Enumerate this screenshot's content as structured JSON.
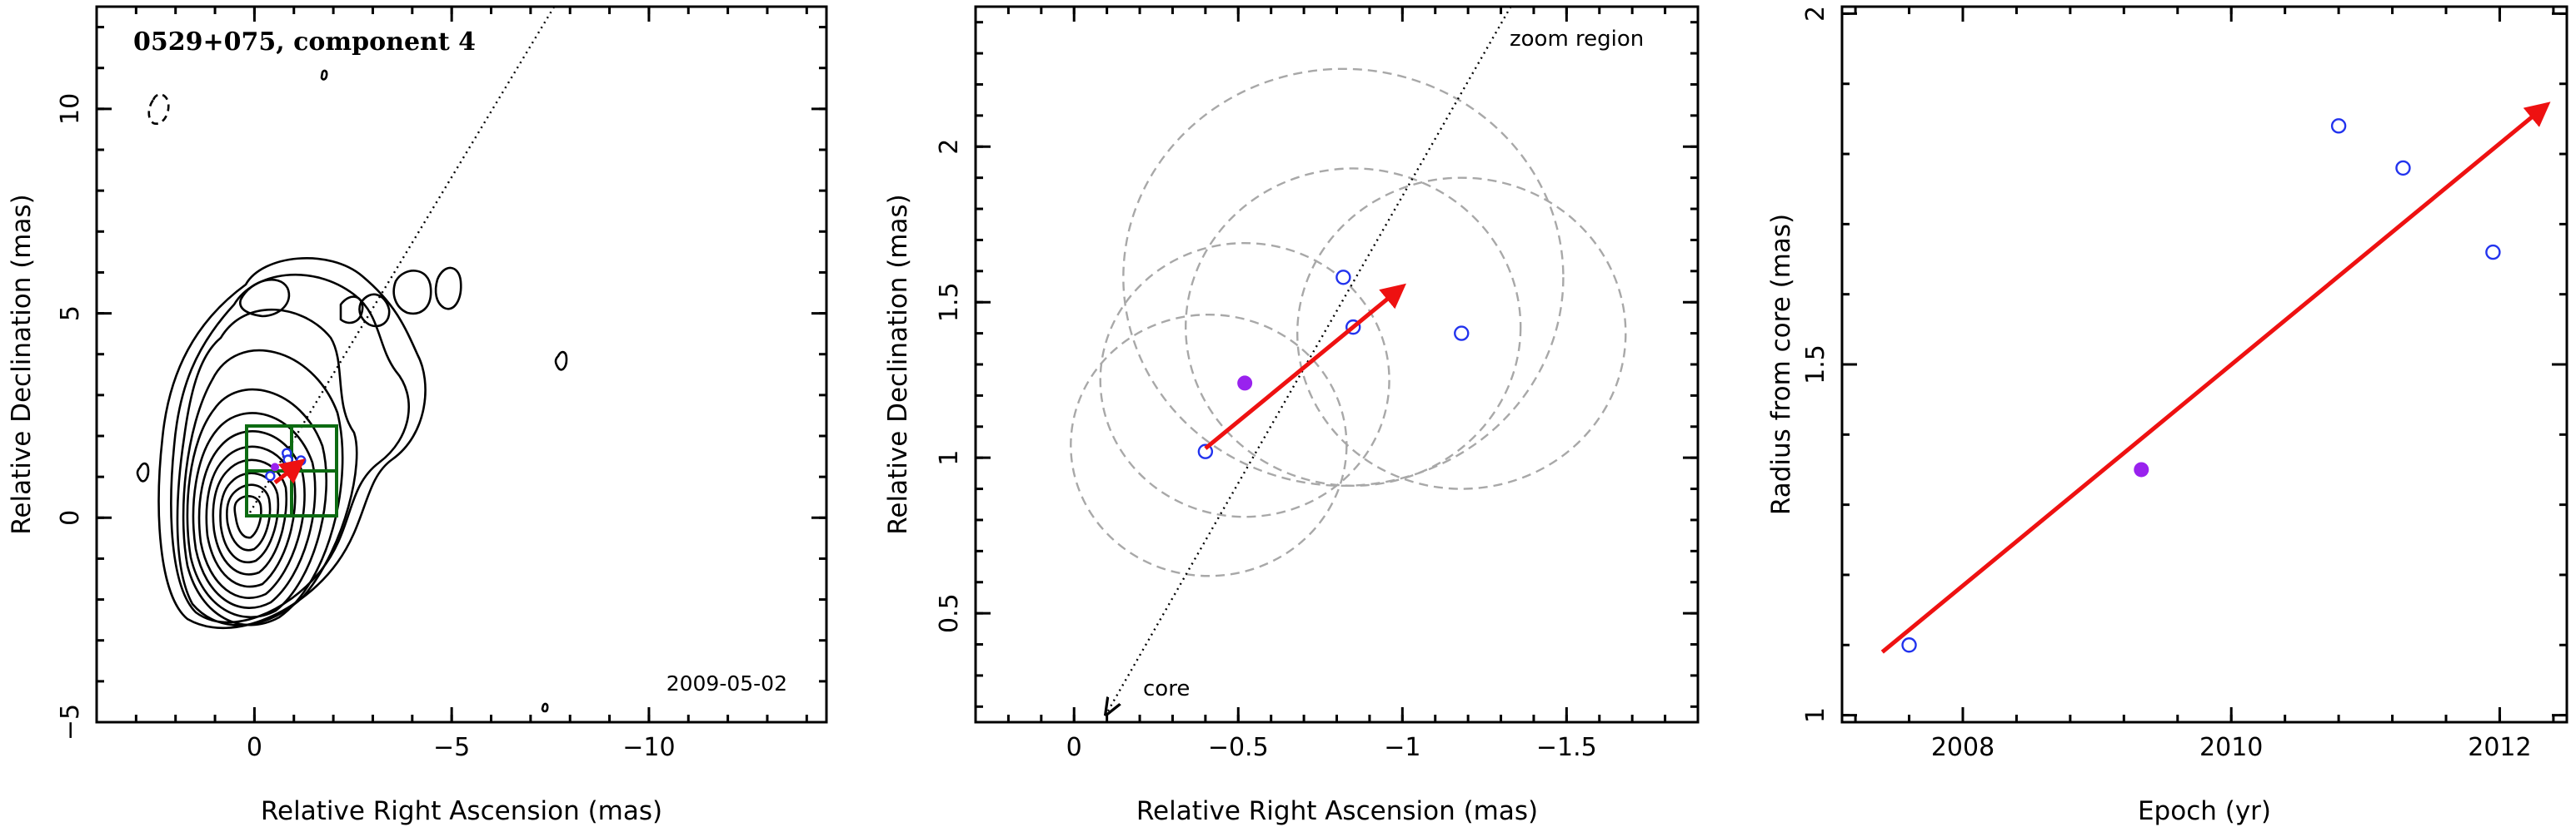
{
  "colors": {
    "arrow": "#ee1111",
    "open_point": "#2233ee",
    "filled_point": "#9922ee",
    "ellipse": "#a8a8a8",
    "zoom_box": "#0d6b12"
  },
  "chart_data": [
    {
      "type": "contour",
      "title": "0529+075, component 4",
      "epoch_label": "2009-05-02",
      "xlabel": "Relative Right Ascension (mas)",
      "ylabel": "Relative Declination (mas)",
      "xlim": [
        4,
        -14.5
      ],
      "ylim": [
        -5,
        12.5
      ],
      "xticks": [
        0,
        -5,
        -10
      ],
      "xticklabels": [
        "0",
        "−5",
        "−10"
      ],
      "yticks": [
        -5,
        0,
        5,
        10
      ],
      "yticklabels": [
        "−5",
        "0",
        "5",
        "10"
      ],
      "x_axis_reversed": true,
      "core_position": [
        0,
        0
      ],
      "component_position": [
        -0.4,
        1.0
      ],
      "direction_line_through": [
        [
          0,
          0
        ],
        [
          -0.85,
          1.42
        ]
      ],
      "zoom_box": {
        "x": [
          0.3,
          -2.0
        ],
        "y": [
          0.2,
          2.5
        ]
      },
      "series": [
        {
          "marker": "open",
          "x": [
            -0.4,
            -0.82,
            -0.85,
            -1.18
          ],
          "y": [
            1.02,
            1.58,
            1.42,
            1.4
          ]
        },
        {
          "marker": "filled",
          "x": [
            -0.52
          ],
          "y": [
            1.24
          ]
        }
      ]
    },
    {
      "type": "scatter",
      "title": "",
      "xlabel": "Relative Right Ascension (mas)",
      "ylabel": "Relative Declination (mas)",
      "xlim": [
        0.3,
        -1.9
      ],
      "ylim": [
        0.15,
        2.45
      ],
      "xticks": [
        0,
        -0.5,
        -1,
        -1.5
      ],
      "xticklabels": [
        "0",
        "−0.5",
        "−1",
        "−1.5"
      ],
      "yticks": [
        0.5,
        1,
        1.5,
        2
      ],
      "yticklabels": [
        "0.5",
        "1",
        "1.5",
        "2"
      ],
      "x_axis_reversed": true,
      "annotations": {
        "top": "zoom region",
        "bottom": "core"
      },
      "direction_line": {
        "from": [
          -1.33,
          2.45
        ],
        "to": [
          -0.1,
          0.18
        ]
      },
      "velocity_arrow": {
        "from": [
          -0.4,
          1.03
        ],
        "to": [
          -1.0,
          1.55
        ]
      },
      "series": [
        {
          "marker": "open",
          "x": [
            -0.4,
            -0.82,
            -0.85,
            -1.18
          ],
          "y": [
            1.02,
            1.58,
            1.42,
            1.4
          ]
        },
        {
          "marker": "filled",
          "x": [
            -0.52
          ],
          "y": [
            1.24
          ]
        }
      ],
      "ellipses": [
        {
          "center": [
            -0.41,
            1.04
          ],
          "radius": 0.42
        },
        {
          "center": [
            -0.52,
            1.25
          ],
          "radius": 0.44
        },
        {
          "center": [
            -0.82,
            1.58
          ],
          "radius": 0.67
        },
        {
          "center": [
            -0.85,
            1.42
          ],
          "radius": 0.51
        },
        {
          "center": [
            -1.18,
            1.4
          ],
          "radius": 0.5
        }
      ]
    },
    {
      "type": "scatter",
      "title": "",
      "xlabel": "Epoch (yr)",
      "ylabel": "Radius from core (mas)",
      "xlim": [
        2007.1,
        2012.5
      ],
      "ylim": [
        0.99,
        2.01
      ],
      "xticks": [
        2008,
        2010,
        2012
      ],
      "xticklabels": [
        "2008",
        "2010",
        "2012"
      ],
      "yticks": [
        1,
        1.5,
        2
      ],
      "yticklabels": [
        "1",
        "1.5",
        "2"
      ],
      "series": [
        {
          "marker": "open",
          "x": [
            2007.6,
            2010.8,
            2011.28,
            2011.95
          ],
          "y": [
            1.1,
            1.84,
            1.78,
            1.66
          ]
        },
        {
          "marker": "filled",
          "x": [
            2009.33
          ],
          "y": [
            1.35
          ]
        }
      ],
      "fit_arrow": {
        "from": [
          2007.4,
          1.09
        ],
        "to": [
          2012.35,
          1.87
        ]
      }
    }
  ]
}
